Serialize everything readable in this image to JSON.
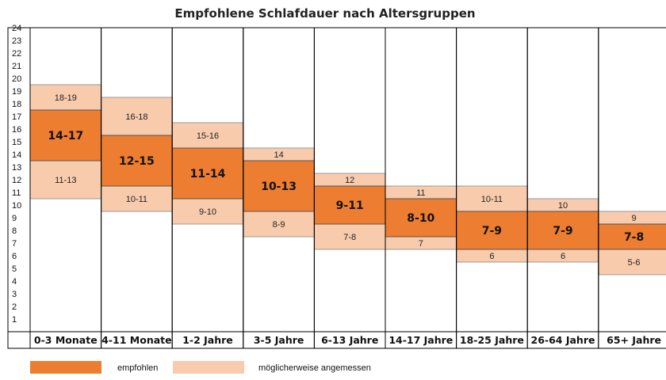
{
  "chart_data": {
    "type": "bar",
    "title": "Empfohlene Schlafdauer nach Altersgruppen",
    "ylim": [
      0,
      24
    ],
    "yticks": [
      1,
      2,
      3,
      4,
      5,
      6,
      7,
      8,
      9,
      10,
      11,
      12,
      13,
      14,
      15,
      16,
      17,
      18,
      19,
      20,
      21,
      22,
      23,
      24
    ],
    "categories": [
      "0-3 Monate",
      "4-11 Monate",
      "1-2 Jahre",
      "3-5 Jahre",
      "6-13 Jahre",
      "14-17 Jahre",
      "18-25 Jahre",
      "26-64 Jahre",
      "65+ Jahre"
    ],
    "series": [
      {
        "name": "empfohlen",
        "color": "#ed7d31",
        "ranges": [
          [
            14,
            17
          ],
          [
            12,
            15
          ],
          [
            11,
            14
          ],
          [
            10,
            13
          ],
          [
            9,
            11
          ],
          [
            8,
            10
          ],
          [
            7,
            9
          ],
          [
            7,
            9
          ],
          [
            7,
            8
          ]
        ],
        "labels": [
          "14-17",
          "12-15",
          "11-14",
          "10-13",
          "9-11",
          "8-10",
          "7-9",
          "7-9",
          "7-8"
        ]
      },
      {
        "name": "möglicherweise angemessen",
        "color": "#f8cbad",
        "upper_ranges": [
          [
            18,
            19
          ],
          [
            16,
            18
          ],
          [
            15,
            16
          ],
          [
            14,
            14
          ],
          [
            12,
            12
          ],
          [
            11,
            11
          ],
          [
            10,
            11
          ],
          [
            10,
            10
          ],
          [
            9,
            9
          ]
        ],
        "upper_labels": [
          "18-19",
          "16-18",
          "15-16",
          "14",
          "12",
          "11",
          "10-11",
          "10",
          "9"
        ],
        "lower_ranges": [
          [
            11,
            13
          ],
          [
            10,
            11
          ],
          [
            9,
            10
          ],
          [
            8,
            9
          ],
          [
            7,
            8
          ],
          [
            7,
            7
          ],
          [
            6,
            6
          ],
          [
            6,
            6
          ],
          [
            5,
            6
          ]
        ],
        "lower_labels": [
          "11-13",
          "10-11",
          "9-10",
          "8-9",
          "7-8",
          "7",
          "6",
          "6",
          "5-6"
        ]
      }
    ],
    "grid": false,
    "legend": "bottom-left"
  }
}
